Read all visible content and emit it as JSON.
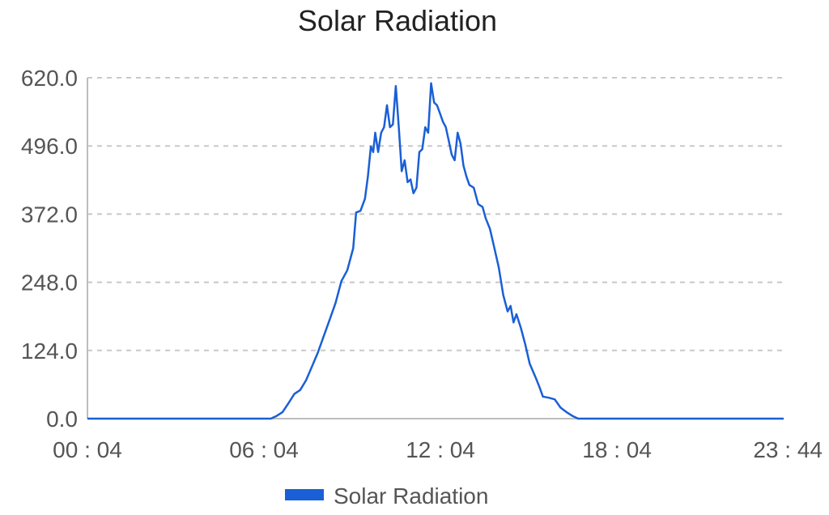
{
  "chart_data": {
    "type": "line",
    "title": "Solar Radiation",
    "xlabel": "",
    "ylabel": "",
    "x_tick_labels": [
      "00 : 04",
      "06 : 04",
      "12 : 04",
      "18 : 04",
      "23 : 44"
    ],
    "x_tick_hours": [
      0.067,
      6.067,
      12.067,
      18.067,
      23.733
    ],
    "xlim": [
      0.067,
      23.733
    ],
    "y_tick_labels": [
      "0.0",
      "124.0",
      "248.0",
      "372.0",
      "496.0",
      "620.0"
    ],
    "y_ticks": [
      0,
      124,
      248,
      372,
      496,
      620
    ],
    "ylim": [
      0,
      620
    ],
    "grid": true,
    "legend_position": "bottom-center",
    "series": [
      {
        "name": "Solar Radiation",
        "color": "#1a5fd6",
        "points": [
          [
            0.067,
            0
          ],
          [
            6.3,
            0
          ],
          [
            6.5,
            5
          ],
          [
            6.7,
            12
          ],
          [
            6.9,
            28
          ],
          [
            7.1,
            45
          ],
          [
            7.3,
            52
          ],
          [
            7.5,
            70
          ],
          [
            7.7,
            95
          ],
          [
            7.9,
            120
          ],
          [
            8.1,
            150
          ],
          [
            8.3,
            180
          ],
          [
            8.5,
            210
          ],
          [
            8.7,
            250
          ],
          [
            8.9,
            270
          ],
          [
            9.1,
            310
          ],
          [
            9.2,
            375
          ],
          [
            9.35,
            378
          ],
          [
            9.5,
            400
          ],
          [
            9.6,
            440
          ],
          [
            9.7,
            495
          ],
          [
            9.78,
            485
          ],
          [
            9.85,
            520
          ],
          [
            9.95,
            485
          ],
          [
            10.05,
            520
          ],
          [
            10.15,
            530
          ],
          [
            10.25,
            570
          ],
          [
            10.35,
            530
          ],
          [
            10.45,
            535
          ],
          [
            10.55,
            605
          ],
          [
            10.65,
            530
          ],
          [
            10.75,
            450
          ],
          [
            10.85,
            470
          ],
          [
            10.95,
            430
          ],
          [
            11.05,
            435
          ],
          [
            11.15,
            410
          ],
          [
            11.25,
            420
          ],
          [
            11.35,
            485
          ],
          [
            11.45,
            490
          ],
          [
            11.55,
            530
          ],
          [
            11.65,
            520
          ],
          [
            11.75,
            610
          ],
          [
            11.85,
            575
          ],
          [
            11.95,
            570
          ],
          [
            12.05,
            555
          ],
          [
            12.15,
            540
          ],
          [
            12.25,
            530
          ],
          [
            12.35,
            505
          ],
          [
            12.45,
            480
          ],
          [
            12.55,
            470
          ],
          [
            12.65,
            520
          ],
          [
            12.75,
            500
          ],
          [
            12.85,
            460
          ],
          [
            12.95,
            440
          ],
          [
            13.05,
            425
          ],
          [
            13.2,
            420
          ],
          [
            13.35,
            390
          ],
          [
            13.5,
            385
          ],
          [
            13.6,
            365
          ],
          [
            13.75,
            345
          ],
          [
            13.9,
            310
          ],
          [
            14.05,
            275
          ],
          [
            14.2,
            225
          ],
          [
            14.35,
            195
          ],
          [
            14.45,
            205
          ],
          [
            14.55,
            175
          ],
          [
            14.65,
            190
          ],
          [
            14.8,
            165
          ],
          [
            14.95,
            135
          ],
          [
            15.1,
            100
          ],
          [
            15.3,
            75
          ],
          [
            15.45,
            55
          ],
          [
            15.55,
            40
          ],
          [
            15.75,
            38
          ],
          [
            15.95,
            35
          ],
          [
            16.15,
            20
          ],
          [
            16.35,
            12
          ],
          [
            16.55,
            5
          ],
          [
            16.75,
            0
          ],
          [
            23.733,
            0
          ]
        ]
      }
    ]
  }
}
